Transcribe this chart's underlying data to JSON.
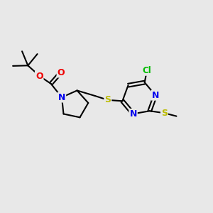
{
  "background_color": "#e8e8e8",
  "atom_colors": {
    "C": "#000000",
    "N": "#0000ee",
    "O": "#ee0000",
    "S": "#bbbb00",
    "Cl": "#00bb00"
  },
  "bond_color": "#000000",
  "bond_width": 1.5,
  "figsize": [
    3.0,
    3.0
  ],
  "dpi": 100
}
